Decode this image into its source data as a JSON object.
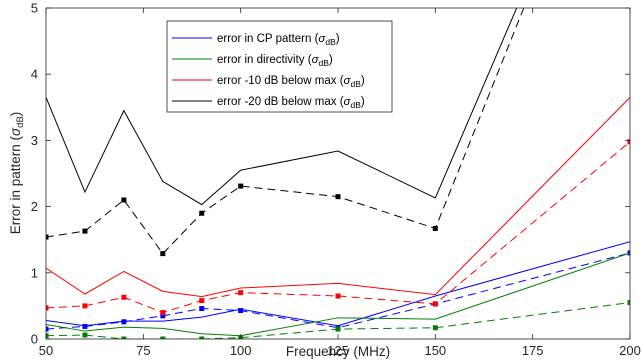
{
  "chart_data": {
    "type": "line",
    "xlabel": "Frequency (MHz)",
    "ylabel_main": "Error in pattern (",
    "ylabel_sym": "σ",
    "ylabel_sub": "dB",
    "ylabel_close": ")",
    "xlim": [
      50,
      200
    ],
    "ylim": [
      0,
      5
    ],
    "xticks": [
      "50",
      "75",
      "100",
      "125",
      "150",
      "175",
      "200"
    ],
    "yticks": [
      "0",
      "1",
      "2",
      "3",
      "4",
      "5"
    ],
    "grid": false,
    "legend_position": "top-center",
    "x": [
      50,
      60,
      70,
      80,
      90,
      100,
      125,
      150,
      200
    ],
    "series": [
      {
        "name_main": "error in CP pattern (",
        "name_sym": "σ",
        "name_sub": "dB",
        "name_close": ")",
        "color": "#0000ff",
        "solid": [
          0.28,
          0.2,
          0.27,
          0.27,
          0.33,
          0.45,
          0.2,
          0.65,
          1.47
        ],
        "dashed": [
          0.15,
          0.19,
          0.26,
          0.35,
          0.46,
          0.43,
          0.17,
          0.53,
          1.3
        ]
      },
      {
        "name_main": "error in directivity (",
        "name_sym": "σ",
        "name_sub": "dB",
        "name_close": ")",
        "color": "#008000",
        "solid": [
          0.22,
          0.12,
          0.18,
          0.16,
          0.08,
          0.05,
          0.32,
          0.3,
          1.3
        ],
        "dashed": [
          0.05,
          0.06,
          0.0,
          0.0,
          0.0,
          0.02,
          0.15,
          0.17,
          0.55
        ]
      },
      {
        "name_main": "error -10 dB below max (",
        "name_sym": "σ",
        "name_sub": "dB",
        "name_close": ")",
        "color": "#ff0000",
        "solid": [
          1.07,
          0.68,
          1.02,
          0.72,
          0.64,
          0.77,
          0.84,
          0.67,
          3.65
        ],
        "dashed": [
          0.47,
          0.5,
          0.63,
          0.4,
          0.58,
          0.7,
          0.65,
          0.53,
          2.98
        ]
      },
      {
        "name_main": "error -20 dB below max (",
        "name_sym": "σ",
        "name_sub": "dB",
        "name_close": ")",
        "color": "#000000",
        "solid": [
          3.65,
          2.22,
          3.45,
          2.38,
          2.03,
          2.55,
          2.84,
          2.13,
          9.0
        ],
        "dashed": [
          1.54,
          1.63,
          2.1,
          1.29,
          1.9,
          2.31,
          2.15,
          1.67,
          9.0
        ]
      }
    ]
  }
}
